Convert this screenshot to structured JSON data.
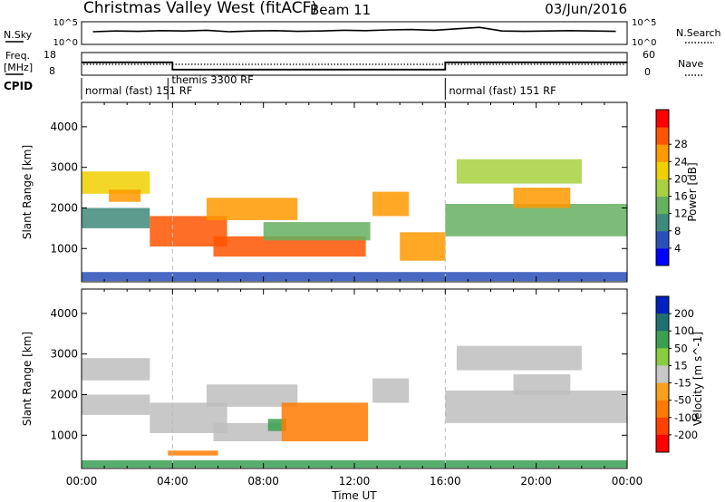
{
  "header": {
    "title": "Christmas Valley West (fitACF)",
    "beam": "Beam 11",
    "date": "03/Jun/2016"
  },
  "nsky_panel": {
    "label": "N.Sky",
    "left_ticks": [
      "10^5",
      "10^0"
    ],
    "right_ticks": [
      "10^5",
      "10^0"
    ],
    "right_label": "N.Search"
  },
  "freq_panel": {
    "label_line1": "Freq.",
    "label_line2": "[MHz]",
    "left_ticks": [
      "18",
      "8"
    ],
    "right_ticks": [
      "60",
      "0"
    ],
    "right_label": "Nave"
  },
  "cpid_panel": {
    "label": "CPID",
    "segments": [
      {
        "start_hour": 0,
        "end_hour": 3.8,
        "name": "normal (fast)",
        "code": "151 RF"
      },
      {
        "start_hour": 3.8,
        "end_hour": 16,
        "name": "themis",
        "code": "3300 RF"
      },
      {
        "start_hour": 16,
        "end_hour": 24,
        "name": "normal (fast)",
        "code": "151 RF"
      }
    ]
  },
  "colors": {
    "power_scale": [
      "#0000ff",
      "#2a4fb8",
      "#3f8a7a",
      "#66b060",
      "#a8d040",
      "#f0d000",
      "#ff9900",
      "#ff5500",
      "#ff0000"
    ],
    "velocity_scale": [
      "#0020c0",
      "#207070",
      "#3aa050",
      "#88cc40",
      "#c8c8c8",
      "#f8a020",
      "#ff7a00",
      "#ff4000",
      "#ff0000"
    ],
    "ground_scatter": "#bebebe"
  },
  "chart_data": [
    {
      "type": "heatmap",
      "name": "power",
      "ylabel": "Slant Range [km]",
      "xlabel": "",
      "xlim": [
        0,
        24
      ],
      "ylim": [
        180,
        4600
      ],
      "yticks": [
        "1000",
        "2000",
        "3000",
        "4000"
      ],
      "colorbar": {
        "label": "Power [dB]",
        "ticks": [
          "4",
          "8",
          "12",
          "16",
          "20",
          "24",
          "28"
        ],
        "range": [
          0,
          32
        ]
      },
      "regions": [
        {
          "t0": 0.0,
          "t1": 3.0,
          "r0": 2350,
          "r1": 2900,
          "value": 18
        },
        {
          "t0": 0.0,
          "t1": 3.0,
          "r0": 1500,
          "r1": 2000,
          "value": 10
        },
        {
          "t0": 1.2,
          "t1": 2.6,
          "r0": 2150,
          "r1": 2450,
          "value": 24
        },
        {
          "t0": 3.0,
          "t1": 6.4,
          "r0": 1050,
          "r1": 1800,
          "value": 28
        },
        {
          "t0": 5.5,
          "t1": 9.5,
          "r0": 1700,
          "r1": 2250,
          "value": 24
        },
        {
          "t0": 5.8,
          "t1": 12.5,
          "r0": 800,
          "r1": 1300,
          "value": 26
        },
        {
          "t0": 8.0,
          "t1": 12.7,
          "r0": 1200,
          "r1": 1650,
          "value": 12
        },
        {
          "t0": 12.8,
          "t1": 14.4,
          "r0": 1800,
          "r1": 2400,
          "value": 24
        },
        {
          "t0": 14.0,
          "t1": 16.0,
          "r0": 700,
          "r1": 1400,
          "value": 22
        },
        {
          "t0": 16.0,
          "t1": 24.0,
          "r0": 1300,
          "r1": 2100,
          "value": 14
        },
        {
          "t0": 19.0,
          "t1": 21.5,
          "r0": 2000,
          "r1": 2500,
          "value": 24
        },
        {
          "t0": 16.5,
          "t1": 22.0,
          "r0": 2600,
          "r1": 3200,
          "value": 16
        },
        {
          "t0": 0.0,
          "t1": 24.0,
          "r0": 200,
          "r1": 420,
          "value": 6
        }
      ]
    },
    {
      "type": "heatmap",
      "name": "velocity",
      "ylabel": "Slant Range [km]",
      "xlabel": "Time UT",
      "xlim": [
        0,
        24
      ],
      "ylim": [
        180,
        4600
      ],
      "yticks": [
        "1000",
        "2000",
        "3000",
        "4000"
      ],
      "xticks": [
        "00:00",
        "04:00",
        "08:00",
        "12:00",
        "16:00",
        "20:00",
        "00:00"
      ],
      "colorbar": {
        "label": "Velocity [m s^-1]",
        "ticks": [
          "200",
          "100",
          "50",
          "15",
          "-15",
          "-50",
          "-100",
          "-200"
        ],
        "range": [
          -250,
          250
        ]
      },
      "regions": [
        {
          "t0": 0.0,
          "t1": 3.0,
          "r0": 2350,
          "r1": 2900,
          "value": 0
        },
        {
          "t0": 0.0,
          "t1": 3.0,
          "r0": 1500,
          "r1": 2000,
          "value": 0
        },
        {
          "t0": 3.0,
          "t1": 6.4,
          "r0": 1050,
          "r1": 1800,
          "value": 0
        },
        {
          "t0": 5.5,
          "t1": 9.5,
          "r0": 1700,
          "r1": 2250,
          "value": 0
        },
        {
          "t0": 5.8,
          "t1": 8.8,
          "r0": 850,
          "r1": 1300,
          "value": 0
        },
        {
          "t0": 8.2,
          "t1": 9.0,
          "r0": 1100,
          "r1": 1400,
          "value": 40
        },
        {
          "t0": 8.8,
          "t1": 12.6,
          "r0": 850,
          "r1": 1800,
          "value": -70
        },
        {
          "t0": 12.8,
          "t1": 14.4,
          "r0": 1800,
          "r1": 2400,
          "value": 0
        },
        {
          "t0": 16.0,
          "t1": 24.0,
          "r0": 1300,
          "r1": 2100,
          "value": 0
        },
        {
          "t0": 19.0,
          "t1": 21.5,
          "r0": 2000,
          "r1": 2500,
          "value": 0
        },
        {
          "t0": 16.5,
          "t1": 22.0,
          "r0": 2600,
          "r1": 3200,
          "value": 0
        },
        {
          "t0": 3.8,
          "t1": 6.0,
          "r0": 500,
          "r1": 620,
          "value": -60
        },
        {
          "t0": 0.0,
          "t1": 24.0,
          "r0": 200,
          "r1": 380,
          "value": 40
        }
      ]
    }
  ],
  "nsky_trace": {
    "values": [
      3,
      3.2,
      3.1,
      3.3,
      3.2,
      3.4,
      3.0,
      3.2,
      3.3,
      3.1,
      3.2,
      3.4,
      3.3,
      3.5,
      3.6,
      3.4,
      3.8,
      4.2,
      3.2,
      3.1,
      3.2,
      3.3,
      3.2,
      3.1
    ]
  },
  "freq_trace": {
    "values_mhz": [
      13.7,
      13.7,
      13.7,
      13.7,
      10.5,
      10.5,
      10.5,
      10.5,
      10.5,
      10.5,
      10.5,
      10.5,
      10.5,
      10.5,
      10.5,
      10.5,
      13.7,
      13.7,
      13.7,
      13.7,
      13.7,
      13.7,
      13.7,
      13.7
    ],
    "change_hours": [
      3.0,
      15.0
    ]
  }
}
